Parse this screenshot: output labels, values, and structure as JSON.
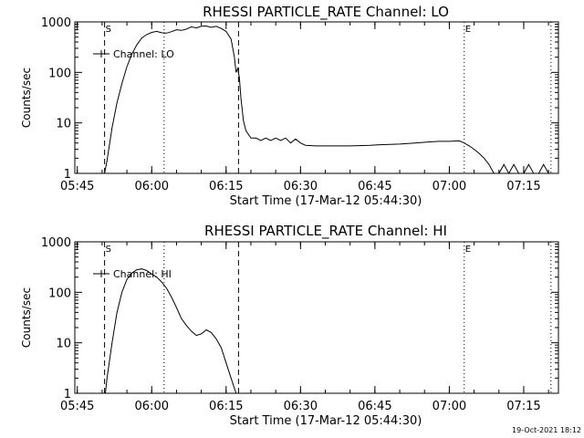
{
  "chart_data": [
    {
      "type": "line",
      "title": "RHESSI PARTICLE_RATE Channel: LO",
      "xlabel": "Start Time (17-Mar-12 05:44:30)",
      "ylabel": "Counts/sec",
      "yscale": "log",
      "ylim": [
        1,
        1000
      ],
      "xlim": [
        "05:44:30",
        "07:22:00"
      ],
      "x_ticks": [
        "05:45",
        "06:00",
        "06:15",
        "06:30",
        "06:45",
        "07:00",
        "07:15"
      ],
      "y_ticks": [
        "1",
        "10",
        "100",
        "1000"
      ],
      "legend": {
        "label": "Channel: LO",
        "position": "top-left"
      },
      "markers": [
        {
          "label": "S",
          "time": "05:50:30",
          "style": "dashed"
        },
        {
          "label": "",
          "time": "06:02:30",
          "style": "dotted"
        },
        {
          "label": "",
          "time": "06:17:30",
          "style": "dashed"
        },
        {
          "label": "E",
          "time": "07:03:00",
          "style": "dotted"
        },
        {
          "label": "",
          "time": "07:20:30",
          "style": "dotted"
        }
      ],
      "series": [
        {
          "x": [
            "05:50:30",
            "05:51:00",
            "05:52:00",
            "05:53:00",
            "05:54:00",
            "05:55:00",
            "05:56:00",
            "05:57:00",
            "05:58:00",
            "05:59:00",
            "06:00:00",
            "06:01:00",
            "06:02:00",
            "06:03:00",
            "06:04:00",
            "06:05:00",
            "06:06:00",
            "06:07:00",
            "06:08:00",
            "06:09:00",
            "06:10:00",
            "06:11:00",
            "06:12:00",
            "06:13:00",
            "06:14:00",
            "06:15:00",
            "06:16:00",
            "06:16:40",
            "06:17:00",
            "06:17:20",
            "06:17:40",
            "06:18:00",
            "06:18:30",
            "06:19:00",
            "06:20:00",
            "06:21:00",
            "06:22:00",
            "06:23:00",
            "06:24:00",
            "06:25:00",
            "06:26:00",
            "06:27:00",
            "06:28:00",
            "06:29:00",
            "06:30:00",
            "06:31:00",
            "06:33:00",
            "06:36:00",
            "06:40:00",
            "06:44:00",
            "06:46:00",
            "06:50:00",
            "06:53:00",
            "06:56:00",
            "06:58:00",
            "07:00:00",
            "07:02:00",
            "07:03:00",
            "07:04:00",
            "07:05:00",
            "07:06:00",
            "07:07:00",
            "07:08:00",
            "07:09:00",
            "07:10:00",
            "07:11:00",
            "07:12:00",
            "07:13:00",
            "07:14:00",
            "07:15:00",
            "07:16:00",
            "07:17:00",
            "07:18:00",
            "07:19:00",
            "07:20:00"
          ],
          "y": [
            1,
            1.8,
            8,
            25,
            60,
            130,
            230,
            350,
            480,
            560,
            620,
            650,
            610,
            600,
            640,
            700,
            680,
            720,
            800,
            760,
            820,
            830,
            780,
            820,
            740,
            650,
            460,
            200,
            100,
            120,
            80,
            30,
            11,
            7,
            5,
            5,
            4.5,
            5,
            4.5,
            5,
            4.5,
            5,
            4,
            4.8,
            4,
            3.6,
            3.5,
            3.5,
            3.5,
            3.6,
            3.7,
            3.8,
            4,
            4.2,
            4.3,
            4.3,
            4.4,
            4,
            3.5,
            3,
            2.5,
            2,
            1.5,
            1,
            1,
            1.5,
            1,
            1.5,
            1,
            1,
            1.5,
            1,
            1,
            1.5,
            1
          ]
        }
      ]
    },
    {
      "type": "line",
      "title": "RHESSI PARTICLE_RATE Channel: HI",
      "xlabel": "Start Time (17-Mar-12 05:44:30)",
      "ylabel": "Counts/sec",
      "yscale": "log",
      "ylim": [
        1,
        1000
      ],
      "xlim": [
        "05:44:30",
        "07:22:00"
      ],
      "x_ticks": [
        "05:45",
        "06:00",
        "06:15",
        "06:30",
        "06:45",
        "07:00",
        "07:15"
      ],
      "y_ticks": [
        "1",
        "10",
        "100",
        "1000"
      ],
      "legend": {
        "label": "Channel: HI",
        "position": "top-left"
      },
      "markers": [
        {
          "label": "S",
          "time": "05:50:30",
          "style": "dashed"
        },
        {
          "label": "",
          "time": "06:02:30",
          "style": "dotted"
        },
        {
          "label": "",
          "time": "06:17:30",
          "style": "dashed"
        },
        {
          "label": "E",
          "time": "07:03:00",
          "style": "dotted"
        },
        {
          "label": "",
          "time": "07:20:30",
          "style": "dotted"
        }
      ],
      "series": [
        {
          "x": [
            "05:50:40",
            "05:51:00",
            "05:52:00",
            "05:53:00",
            "05:54:00",
            "05:55:00",
            "05:56:00",
            "05:57:00",
            "05:58:00",
            "05:59:00",
            "06:00:00",
            "06:01:00",
            "06:02:00",
            "06:03:00",
            "06:04:00",
            "06:05:00",
            "06:06:00",
            "06:07:00",
            "06:08:00",
            "06:09:00",
            "06:10:00",
            "06:11:00",
            "06:12:00",
            "06:13:00",
            "06:14:00",
            "06:15:00",
            "06:16:00",
            "06:17:00"
          ],
          "y": [
            1,
            2,
            10,
            40,
            100,
            180,
            240,
            280,
            290,
            270,
            230,
            200,
            160,
            120,
            80,
            50,
            30,
            22,
            17,
            14,
            15,
            18,
            16,
            12,
            8,
            4,
            2,
            1
          ]
        }
      ]
    }
  ],
  "footer_timestamp": "19-Oct-2021 18:12"
}
